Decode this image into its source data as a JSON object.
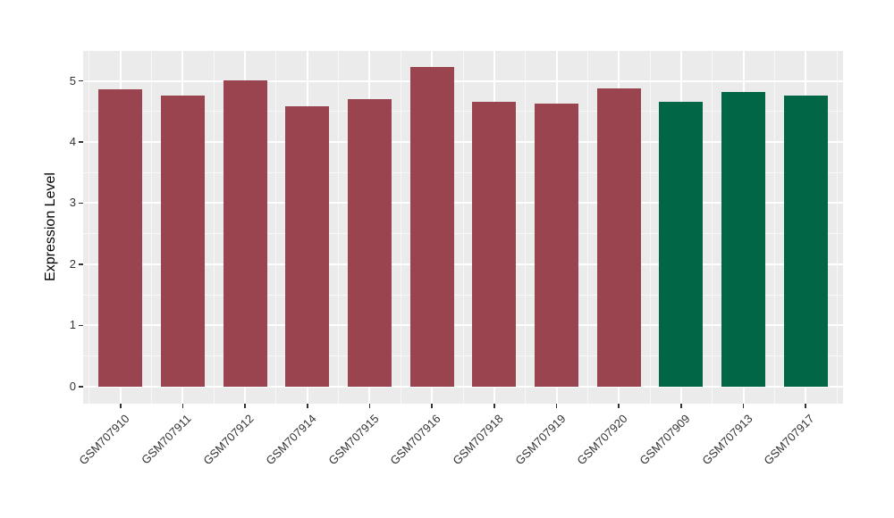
{
  "chart_data": {
    "type": "bar",
    "title": "",
    "xlabel": "",
    "ylabel": "Expression Level",
    "categories": [
      "GSM707910",
      "GSM707911",
      "GSM707912",
      "GSM707914",
      "GSM707915",
      "GSM707916",
      "GSM707918",
      "GSM707919",
      "GSM707920",
      "GSM707909",
      "GSM707913",
      "GSM707917"
    ],
    "values": [
      4.86,
      4.76,
      5.01,
      4.58,
      4.7,
      5.23,
      4.66,
      4.63,
      4.88,
      4.66,
      4.82,
      4.76
    ],
    "bar_colors": [
      "#9A4450",
      "#9A4450",
      "#9A4450",
      "#9A4450",
      "#9A4450",
      "#9A4450",
      "#9A4450",
      "#9A4450",
      "#9A4450",
      "#006645",
      "#006645",
      "#006645"
    ],
    "groups": [
      {
        "color": "#9A4450",
        "members": [
          "GSM707910",
          "GSM707911",
          "GSM707912",
          "GSM707914",
          "GSM707915",
          "GSM707916",
          "GSM707918",
          "GSM707919",
          "GSM707920"
        ]
      },
      {
        "color": "#006645",
        "members": [
          "GSM707909",
          "GSM707913",
          "GSM707917"
        ]
      }
    ],
    "yticks": [
      "0",
      "1",
      "2",
      "3",
      "4",
      "5"
    ],
    "ytick_values": [
      0,
      1,
      2,
      3,
      4,
      5
    ],
    "ylim": [
      -0.28,
      5.49
    ],
    "minor_grid_step": 0.5,
    "x_label_angle": 45,
    "legend": "none",
    "style": {
      "panel_background": "#EBEBEB",
      "grid_color": "#FFFFFF",
      "axis_text_color": "#333333",
      "axis_title_color": "#000000",
      "figure_background": "#FFFFFF",
      "bar_width_fraction": 0.7
    }
  }
}
